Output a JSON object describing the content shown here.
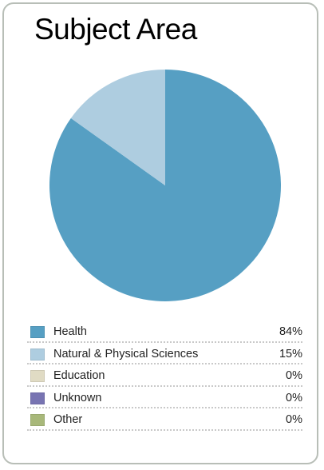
{
  "card": {
    "title": "Subject Area"
  },
  "chart_data": {
    "type": "pie",
    "categories": [
      "Health",
      "Natural & Physical Sciences",
      "Education",
      "Unknown",
      "Other"
    ],
    "values": [
      84,
      15,
      0,
      0,
      0
    ],
    "display_values": [
      "84%",
      "15%",
      "0%",
      "0%",
      "0%"
    ],
    "colors": [
      "#569fc3",
      "#aecde0",
      "#e0dbc4",
      "#7874b2",
      "#a8b87a"
    ],
    "legend_position": "bottom",
    "start": "top, clockwise"
  }
}
